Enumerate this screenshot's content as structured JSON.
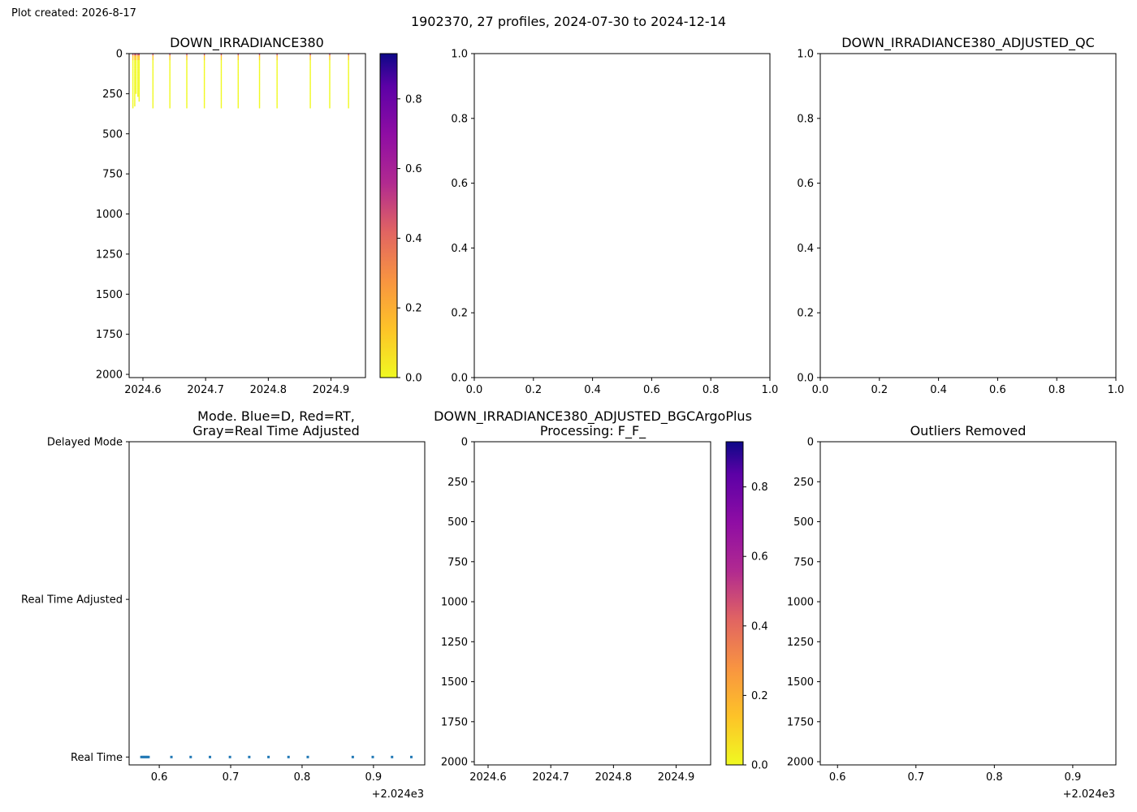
{
  "created_label": "Plot created: 2026-8-17",
  "suptitle": "1902370, 27 profiles, 2024-07-30 to 2024-12-14",
  "colors": {
    "mode_marker": "#1f77b4",
    "axis": "#000000"
  },
  "chart_data": [
    {
      "id": "p1",
      "type": "scatter",
      "title": "DOWN_IRRADIANCE380",
      "xlim": [
        2024.578,
        2024.955
      ],
      "ylim": [
        2020,
        0
      ],
      "xticks": [
        2024.6,
        2024.7,
        2024.8,
        2024.9
      ],
      "xticklabels": [
        "2024.6",
        "2024.7",
        "2024.8",
        "2024.9"
      ],
      "yticks": [
        0,
        250,
        500,
        750,
        1000,
        1250,
        1500,
        1750,
        2000
      ],
      "yticklabels": [
        "0",
        "250",
        "500",
        "750",
        "1000",
        "1250",
        "1500",
        "1750",
        "2000"
      ],
      "colormap": "plasma_r",
      "cbar_range": [
        0,
        0.93
      ],
      "cbar_ticks": [
        0.0,
        0.2,
        0.4,
        0.6,
        0.8
      ],
      "cbar_ticklabels": [
        "0.0",
        "0.2",
        "0.4",
        "0.6",
        "0.8"
      ],
      "profiles": [
        {
          "x": 2024.584,
          "zmax": 340
        },
        {
          "x": 2024.587,
          "zmax": 330
        },
        {
          "x": 2024.589,
          "zmax": 250
        },
        {
          "x": 2024.592,
          "zmax": 270
        },
        {
          "x": 2024.594,
          "zmax": 300
        },
        {
          "x": 2024.616,
          "zmax": 340
        },
        {
          "x": 2024.643,
          "zmax": 340
        },
        {
          "x": 2024.67,
          "zmax": 340
        },
        {
          "x": 2024.698,
          "zmax": 340
        },
        {
          "x": 2024.725,
          "zmax": 340
        },
        {
          "x": 2024.752,
          "zmax": 340
        },
        {
          "x": 2024.786,
          "zmax": 340
        },
        {
          "x": 2024.814,
          "zmax": 340
        },
        {
          "x": 2024.867,
          "zmax": 340
        },
        {
          "x": 2024.898,
          "zmax": 340
        },
        {
          "x": 2024.928,
          "zmax": 340
        }
      ]
    },
    {
      "id": "p2",
      "type": "scatter",
      "title": "",
      "xlim": [
        0,
        1
      ],
      "ylim": [
        0,
        1
      ],
      "xticks": [
        0,
        0.2,
        0.4,
        0.6,
        0.8,
        1.0
      ],
      "xticklabels": [
        "0.0",
        "0.2",
        "0.4",
        "0.6",
        "0.8",
        "1.0"
      ],
      "yticks": [
        0,
        0.2,
        0.4,
        0.6,
        0.8,
        1.0
      ],
      "yticklabels": [
        "0.0",
        "0.2",
        "0.4",
        "0.6",
        "0.8",
        "1.0"
      ]
    },
    {
      "id": "p3",
      "type": "scatter",
      "title": "DOWN_IRRADIANCE380_ADJUSTED_QC",
      "xlim": [
        0,
        1
      ],
      "ylim": [
        0,
        1
      ],
      "xticks": [
        0,
        0.2,
        0.4,
        0.6,
        0.8,
        1.0
      ],
      "xticklabels": [
        "0.0",
        "0.2",
        "0.4",
        "0.6",
        "0.8",
        "1.0"
      ],
      "yticks": [
        0,
        0.2,
        0.4,
        0.6,
        0.8,
        1.0
      ],
      "yticklabels": [
        "0.0",
        "0.2",
        "0.4",
        "0.6",
        "0.8",
        "1.0"
      ]
    },
    {
      "id": "p4",
      "type": "scatter",
      "title": [
        "Mode. Blue=D, Red=RT,",
        "Gray=Real Time Adjusted"
      ],
      "xlim": [
        0.5578,
        0.9718
      ],
      "ylim": [
        -0.05,
        2.0
      ],
      "xticks": [
        0.6,
        0.7,
        0.8,
        0.9
      ],
      "xticklabels": [
        "0.6",
        "0.7",
        "0.8",
        "0.9"
      ],
      "offset_label": "+2.024e3",
      "yticks": [
        0,
        1,
        2
      ],
      "yticklabels": [
        "Real Time",
        "Real Time Adjusted",
        "Delayed Mode"
      ],
      "points_x": [
        0.575,
        0.577,
        0.579,
        0.581,
        0.583,
        0.585,
        0.617,
        0.644,
        0.671,
        0.699,
        0.726,
        0.753,
        0.781,
        0.808,
        0.871,
        0.899,
        0.926,
        0.953
      ],
      "points_y": [
        0,
        0,
        0,
        0,
        0,
        0,
        0,
        0,
        0,
        0,
        0,
        0,
        0,
        0,
        0,
        0,
        0,
        0
      ]
    },
    {
      "id": "p5",
      "type": "scatter",
      "title": [
        "DOWN_IRRADIANCE380_ADJUSTED_BGCArgoPlus",
        "Processing: F_F_"
      ],
      "xlim": [
        2024.578,
        2024.955
      ],
      "ylim": [
        2020,
        0
      ],
      "xticks": [
        2024.6,
        2024.7,
        2024.8,
        2024.9
      ],
      "xticklabels": [
        "2024.6",
        "2024.7",
        "2024.8",
        "2024.9"
      ],
      "yticks": [
        0,
        250,
        500,
        750,
        1000,
        1250,
        1500,
        1750,
        2000
      ],
      "yticklabels": [
        "0",
        "250",
        "500",
        "750",
        "1000",
        "1250",
        "1500",
        "1750",
        "2000"
      ],
      "colormap": "plasma_r",
      "cbar_range": [
        0,
        0.93
      ],
      "cbar_ticks": [
        0.0,
        0.2,
        0.4,
        0.6,
        0.8
      ],
      "cbar_ticklabels": [
        "0.0",
        "0.2",
        "0.4",
        "0.6",
        "0.8"
      ]
    },
    {
      "id": "p6",
      "type": "scatter",
      "title": "Outliers Removed",
      "xlim": [
        0.578,
        0.955
      ],
      "ylim": [
        2020,
        0
      ],
      "xticks": [
        0.6,
        0.7,
        0.8,
        0.9
      ],
      "xticklabels": [
        "0.6",
        "0.7",
        "0.8",
        "0.9"
      ],
      "offset_label": "+2.024e3",
      "yticks": [
        0,
        250,
        500,
        750,
        1000,
        1250,
        1500,
        1750,
        2000
      ],
      "yticklabels": [
        "0",
        "250",
        "500",
        "750",
        "1000",
        "1250",
        "1500",
        "1750",
        "2000"
      ]
    }
  ]
}
